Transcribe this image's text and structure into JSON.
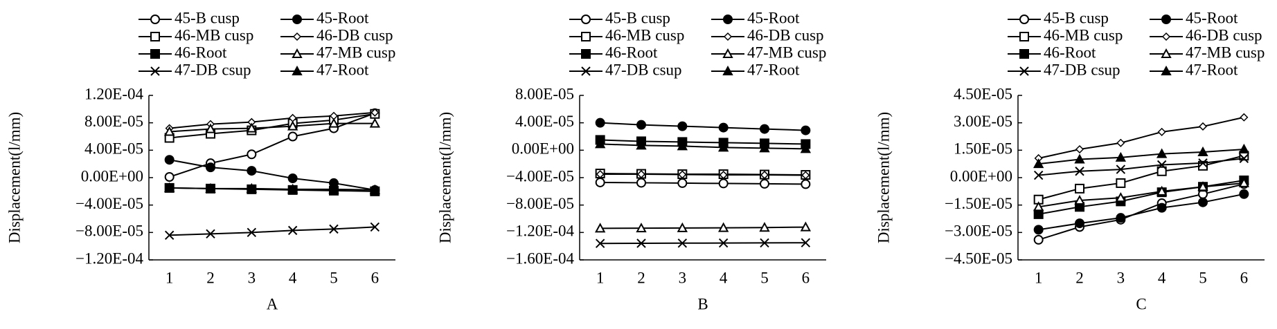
{
  "chart_data": [
    {
      "type": "line",
      "x_label": "A",
      "y_label": "Displacement(l/mm)",
      "categories": [
        "1",
        "2",
        "3",
        "4",
        "5",
        "6"
      ],
      "ylim": [
        -0.00012,
        0.00012
      ],
      "yticks": [
        {
          "value": -0.00012,
          "label": "−1.20E-04"
        },
        {
          "value": -8e-05,
          "label": "−8.00E-05"
        },
        {
          "value": -4e-05,
          "label": "−4.00E-05"
        },
        {
          "value": 0,
          "label": "0.00E+00"
        },
        {
          "value": 4e-05,
          "label": "4.00E-05"
        },
        {
          "value": 8e-05,
          "label": "8.00E-05"
        },
        {
          "value": 0.00012,
          "label": "1.20E-04"
        }
      ],
      "series": [
        {
          "name": "45-B cusp",
          "color": "#000000",
          "marker": "circle-open",
          "values": [
            1e-06,
            2.1e-05,
            3.4e-05,
            6e-05,
            7.2e-05,
            9.4e-05
          ]
        },
        {
          "name": "45-Root",
          "color": "#000000",
          "marker": "circle-filled",
          "values": [
            2.6e-05,
            1.5e-05,
            1e-05,
            -1e-06,
            -8e-06,
            -1.8e-05
          ]
        },
        {
          "name": "46-MB cusp",
          "color": "#000000",
          "marker": "square-open",
          "values": [
            5.8e-05,
            6.4e-05,
            6.9e-05,
            7.9e-05,
            8.4e-05,
            9.3e-05
          ]
        },
        {
          "name": "46-DB cusp",
          "color": "#000000",
          "marker": "diamond-open",
          "values": [
            7.2e-05,
            7.8e-05,
            8.1e-05,
            8.7e-05,
            9e-05,
            9.5e-05
          ]
        },
        {
          "name": "46-Root",
          "color": "#000000",
          "marker": "square-filled",
          "values": [
            -1.5e-05,
            -1.6e-05,
            -1.7e-05,
            -1.8e-05,
            -1.9e-05,
            -2e-05
          ]
        },
        {
          "name": "47-MB cusp",
          "color": "#000000",
          "marker": "triangle-open",
          "values": [
            6.7e-05,
            7.1e-05,
            7.2e-05,
            7.5e-05,
            7.9e-05,
            7.9e-05
          ]
        },
        {
          "name": "47-DB csup",
          "color": "#000000",
          "marker": "cross",
          "values": [
            -8.4e-05,
            -8.2e-05,
            -8e-05,
            -7.7e-05,
            -7.5e-05,
            -7.2e-05
          ]
        },
        {
          "name": "47-Root",
          "color": "#000000",
          "marker": "triangle-filled",
          "values": [
            -1.5e-05,
            -1.6e-05,
            -1.6e-05,
            -1.7e-05,
            -1.7e-05,
            -1.8e-05
          ]
        }
      ]
    },
    {
      "type": "line",
      "x_label": "B",
      "y_label": "Displacement(l/mm)",
      "categories": [
        "1",
        "2",
        "3",
        "4",
        "5",
        "6"
      ],
      "ylim": [
        -0.00016,
        8e-05
      ],
      "yticks": [
        {
          "value": -0.00016,
          "label": "−1.60E-04"
        },
        {
          "value": -0.00012,
          "label": "−1.20E-04"
        },
        {
          "value": -8e-05,
          "label": "−8.00E-05"
        },
        {
          "value": -4e-05,
          "label": "−4.00E-05"
        },
        {
          "value": 0,
          "label": "0.00E+00"
        },
        {
          "value": 4e-05,
          "label": "4.00E-05"
        },
        {
          "value": 8e-05,
          "label": "8.00E-05"
        }
      ],
      "series": [
        {
          "name": "45-B cusp",
          "color": "#000000",
          "marker": "circle-open",
          "values": [
            -4.7e-05,
            -4.75e-05,
            -4.8e-05,
            -4.85e-05,
            -4.9e-05,
            -4.95e-05
          ]
        },
        {
          "name": "45-Root",
          "color": "#000000",
          "marker": "circle-filled",
          "values": [
            4e-05,
            3.7e-05,
            3.5e-05,
            3.3e-05,
            3.1e-05,
            2.9e-05
          ]
        },
        {
          "name": "46-MB cusp",
          "color": "#000000",
          "marker": "square-open",
          "values": [
            -3.4e-05,
            -3.45e-05,
            -3.5e-05,
            -3.5e-05,
            -3.55e-05,
            -3.6e-05
          ]
        },
        {
          "name": "46-DB cusp",
          "color": "#000000",
          "marker": "diamond-open",
          "values": [
            -3.5e-05,
            -3.5e-05,
            -3.55e-05,
            -3.6e-05,
            -3.6e-05,
            -3.65e-05
          ]
        },
        {
          "name": "46-Root",
          "color": "#000000",
          "marker": "square-filled",
          "values": [
            1.5e-05,
            1.3e-05,
            1.2e-05,
            1.1e-05,
            1e-05,
            9e-06
          ]
        },
        {
          "name": "47-MB cusp",
          "color": "#000000",
          "marker": "triangle-open",
          "values": [
            -0.000114,
            -0.0001138,
            -0.0001135,
            -0.0001132,
            -0.0001128,
            -0.0001122
          ]
        },
        {
          "name": "47-DB csup",
          "color": "#000000",
          "marker": "cross",
          "values": [
            -0.000136,
            -0.0001358,
            -0.0001356,
            -0.0001354,
            -0.0001352,
            -0.000135
          ]
        },
        {
          "name": "47-Root",
          "color": "#000000",
          "marker": "triangle-filled",
          "values": [
            9e-06,
            7e-06,
            6e-06,
            4e-06,
            3e-06,
            2e-06
          ]
        }
      ]
    },
    {
      "type": "line",
      "x_label": "C",
      "y_label": "Displacement(l/mm)",
      "categories": [
        "1",
        "2",
        "3",
        "4",
        "5",
        "6"
      ],
      "ylim": [
        -4.5e-05,
        4.5e-05
      ],
      "yticks": [
        {
          "value": -4.5e-05,
          "label": "−4.50E-05"
        },
        {
          "value": -3e-05,
          "label": "−3.00E-05"
        },
        {
          "value": -1.5e-05,
          "label": "−1.50E-05"
        },
        {
          "value": 0,
          "label": "0.00E+00"
        },
        {
          "value": 1.5e-05,
          "label": "1.50E-05"
        },
        {
          "value": 3e-05,
          "label": "3.00E-05"
        },
        {
          "value": 4.5e-05,
          "label": "4.50E-05"
        }
      ],
      "series": [
        {
          "name": "45-B cusp",
          "color": "#000000",
          "marker": "circle-open",
          "values": [
            -3.4e-05,
            -2.7e-05,
            -2.3e-05,
            -1.4e-05,
            -9e-06,
            -3.5e-06
          ]
        },
        {
          "name": "45-Root",
          "color": "#000000",
          "marker": "circle-filled",
          "values": [
            -2.85e-05,
            -2.5e-05,
            -2.2e-05,
            -1.65e-05,
            -1.35e-05,
            -9e-06
          ]
        },
        {
          "name": "46-MB cusp",
          "color": "#000000",
          "marker": "square-open",
          "values": [
            -1.2e-05,
            -6e-06,
            -3e-06,
            3.5e-06,
            6.5e-06,
            1.2e-05
          ]
        },
        {
          "name": "46-DB cusp",
          "color": "#000000",
          "marker": "diamond-open",
          "values": [
            1.06e-05,
            1.55e-05,
            1.9e-05,
            2.5e-05,
            2.8e-05,
            3.3e-05
          ]
        },
        {
          "name": "46-Root",
          "color": "#000000",
          "marker": "square-filled",
          "values": [
            -2e-05,
            -1.6e-05,
            -1.3e-05,
            -8e-06,
            -5e-06,
            -1.5e-06
          ]
        },
        {
          "name": "47-MB cusp",
          "color": "#000000",
          "marker": "triangle-open",
          "values": [
            -1.6e-05,
            -1.25e-05,
            -1.1e-05,
            -7.5e-06,
            -5e-06,
            -3e-06
          ]
        },
        {
          "name": "47-DB csup",
          "color": "#000000",
          "marker": "cross",
          "values": [
            1.3e-06,
            3.5e-06,
            4.5e-06,
            7e-06,
            8e-06,
            1.05e-05
          ]
        },
        {
          "name": "47-Root",
          "color": "#000000",
          "marker": "triangle-filled",
          "values": [
            7.5e-06,
            1e-05,
            1.1e-05,
            1.3e-05,
            1.4e-05,
            1.55e-05
          ]
        }
      ]
    }
  ]
}
